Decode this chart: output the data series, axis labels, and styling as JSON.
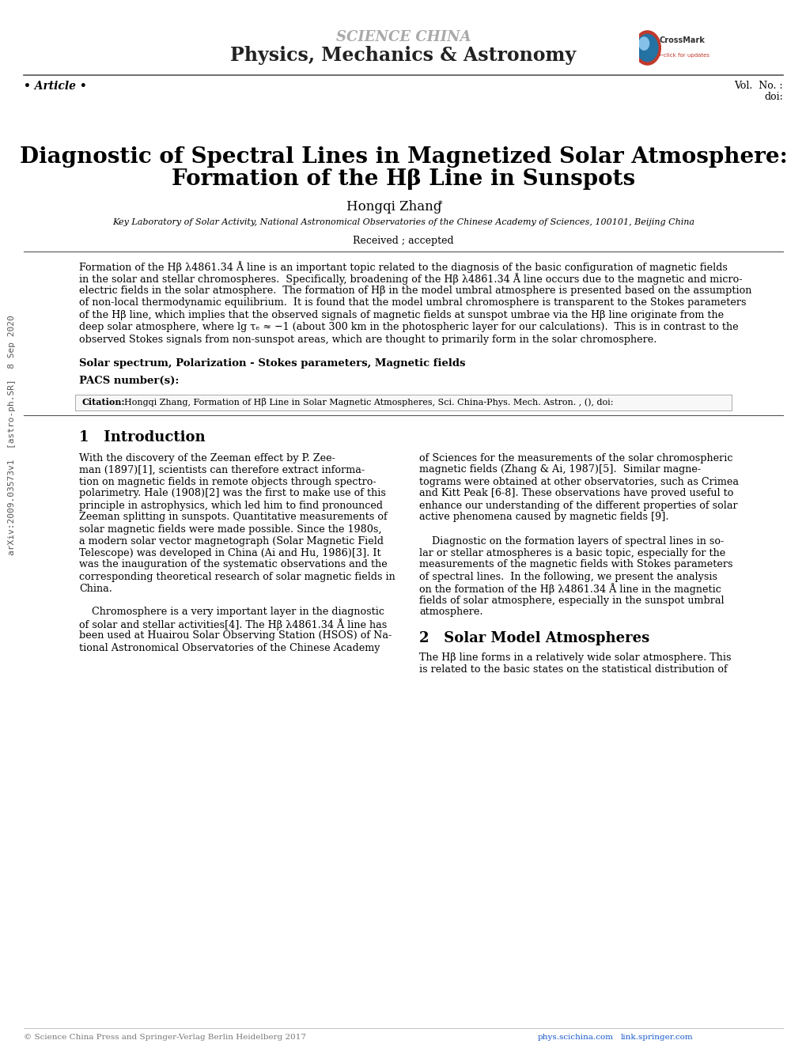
{
  "bg_color": "#ffffff",
  "journal_name": "SCIENCE CHINA",
  "journal_subtitle": "Physics, Mechanics & Astronomy",
  "article_label": "• Article •",
  "vol_label": "Vol.  No. :",
  "doi_label": "doi:",
  "title_line1": "Diagnostic of Spectral Lines in Magnetized Solar Atmosphere:",
  "title_line2": "Formation of the Hβ Line in Sunspots",
  "author": "Hongqi Zhang",
  "author_note": "*",
  "affiliation": "Key Laboratory of Solar Activity, National Astronomical Observatories of the Chinese Academy of Sciences, 100101, Beijing China",
  "received": "Received ; accepted",
  "abstract_lines": [
    "Formation of the Hβ λ4861.34 Å line is an important topic related to the diagnosis of the basic configuration of magnetic fields",
    "in the solar and stellar chromospheres.  Specifically, broadening of the Hβ λ4861.34 Å line occurs due to the magnetic and micro-",
    "electric fields in the solar atmosphere.  The formation of Hβ in the model umbral atmosphere is presented based on the assumption",
    "of non-local thermodynamic equilibrium.  It is found that the model umbral chromosphere is transparent to the Stokes parameters",
    "of the Hβ line, which implies that the observed signals of magnetic fields at sunspot umbrae via the Hβ line originate from the",
    "deep solar atmosphere, where lg τₑ ≈ −1 (about 300 km in the photospheric layer for our calculations).  This is in contrast to the",
    "observed Stokes signals from non-sunspot areas, which are thought to primarily form in the solar chromosphere."
  ],
  "keywords_label": "Solar spectrum, Polarization - Stokes parameters, Magnetic fields",
  "pacs_label": "PACS number(s):",
  "citation_label": "Citation:",
  "citation_text": "Hongqi Zhang, Formation of Hβ Line in Solar Magnetic Atmospheres, Sci. China-Phys. Mech. Astron. , (), doi:",
  "copyright": "© Science China Press and Springer-Verlag Berlin Heidelberg 2017",
  "website1": "phys.scichina.com",
  "website2": "link.springer.com",
  "section1_num": "1",
  "section1_title": "Introduction",
  "section2_num": "2",
  "section2_title": "Solar Model Atmospheres",
  "intro_left_lines": [
    "With the discovery of the Zeeman effect by P. Zee-",
    "man (1897)[1], scientists can therefore extract informa-",
    "tion on magnetic fields in remote objects through spectro-",
    "polarimetry. Hale (1908)[2] was the first to make use of this",
    "principle in astrophysics, which led him to find pronounced",
    "Zeeman splitting in sunspots. Quantitative measurements of",
    "solar magnetic fields were made possible. Since the 1980s,",
    "a modern solar vector magnetograph (Solar Magnetic Field",
    "Telescope) was developed in China (Ai and Hu, 1986)[3]. It",
    "was the inauguration of the systematic observations and the",
    "corresponding theoretical research of solar magnetic fields in",
    "China.",
    "",
    "    Chromosphere is a very important layer in the diagnostic",
    "of solar and stellar activities[4]. The Hβ λ4861.34 Å line has",
    "been used at Huairou Solar Observing Station (HSOS) of Na-",
    "tional Astronomical Observatories of the Chinese Academy"
  ],
  "intro_right_lines": [
    "of Sciences for the measurements of the solar chromospheric",
    "magnetic fields (Zhang & Ai, 1987)[5].  Similar magne-",
    "tograms were obtained at other observatories, such as Crimea",
    "and Kitt Peak [6-8]. These observations have proved useful to",
    "enhance our understanding of the different properties of solar",
    "active phenomena caused by magnetic fields [9].",
    "",
    "    Diagnostic on the formation layers of spectral lines in so-",
    "lar or stellar atmospheres is a basic topic, especially for the",
    "measurements of the magnetic fields with Stokes parameters",
    "of spectral lines.  In the following, we present the analysis",
    "on the formation of the Hβ λ4861.34 Å line in the magnetic",
    "fields of solar atmosphere, especially in the sunspot umbral",
    "atmosphere."
  ],
  "section2_text": "The Hβ line forms in a relatively wide solar atmosphere. This",
  "section2_text2": "is related to the basic states on the statistical distribution of",
  "sidebar_text": "arXiv:2009.03573v1  [astro-ph.SR]  8 Sep 2020",
  "font_color": "#000000",
  "journal_color": "#808080",
  "link_color": "#1155CC"
}
